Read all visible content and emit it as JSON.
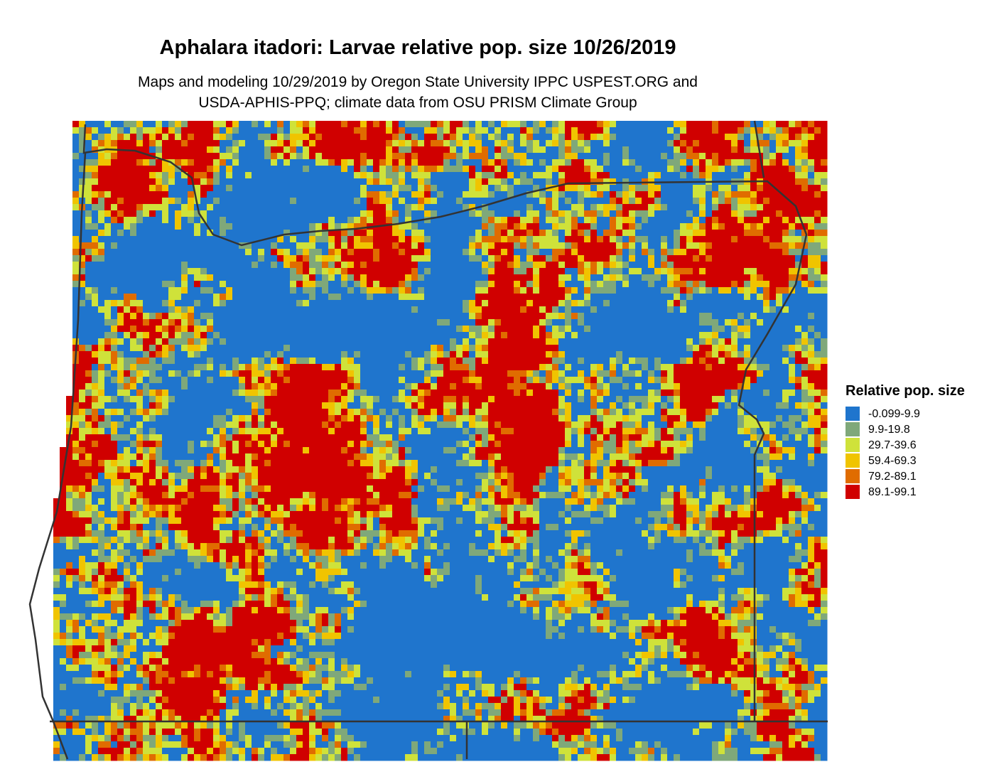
{
  "title": "Aphalara itadori: Larvae relative pop. size 10/26/2019",
  "subtitle_lines": [
    "Maps and modeling 10/29/2019 by Oregon State University IPPC USPEST.ORG and",
    "USDA-APHIS-PPQ; climate data from OSU PRISM Climate Group"
  ],
  "legend": {
    "title": "Relative pop. size",
    "entries": [
      {
        "label": "-0.099-9.9",
        "color": "#1f75cd"
      },
      {
        "label": "9.9-19.8",
        "color": "#7fa87a"
      },
      {
        "label": "29.7-39.6",
        "color": "#cfe23a"
      },
      {
        "label": "59.4-69.3",
        "color": "#f0c400"
      },
      {
        "label": "79.2-89.1",
        "color": "#e06c00"
      },
      {
        "label": "89.1-99.1",
        "color": "#d00000"
      }
    ]
  }
}
